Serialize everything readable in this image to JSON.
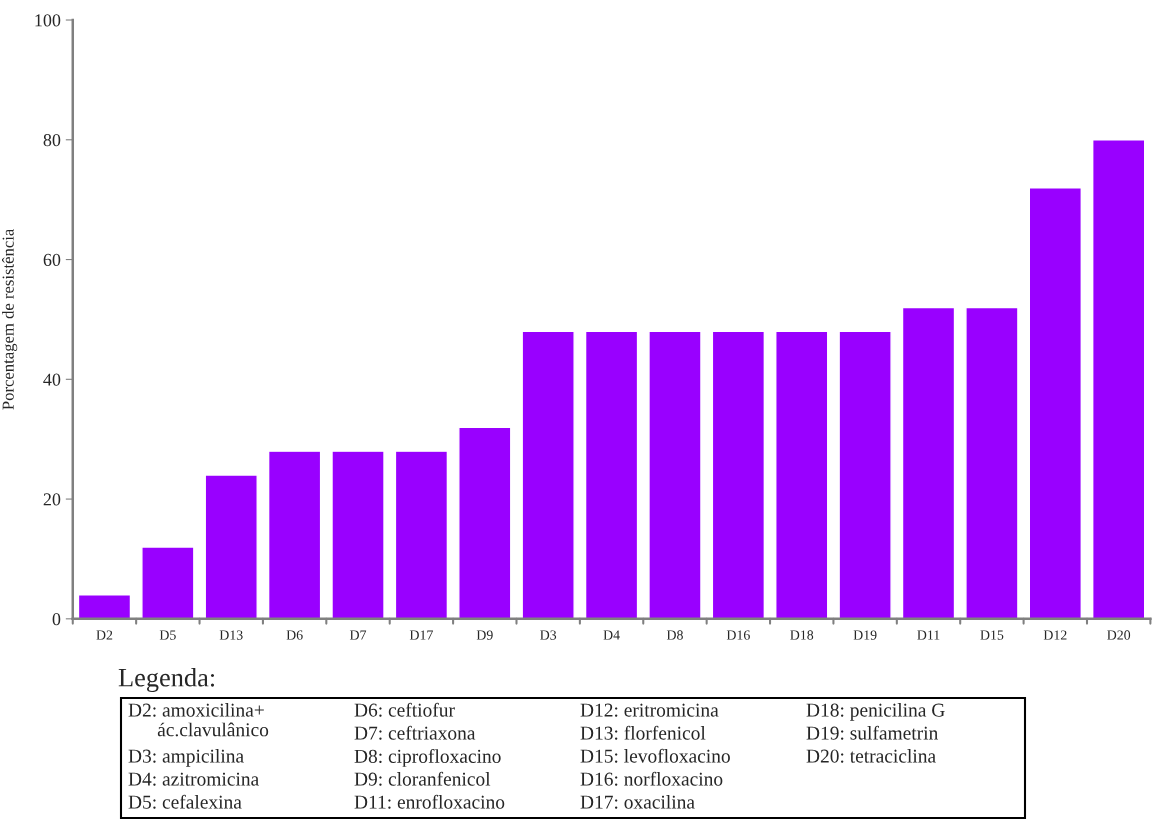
{
  "chart_data": {
    "type": "bar",
    "ylabel": "Porcentagem de resistência",
    "categories": [
      "D2",
      "D5",
      "D13",
      "D6",
      "D7",
      "D17",
      "D9",
      "D3",
      "D4",
      "D8",
      "D16",
      "D18",
      "D19",
      "D11",
      "D15",
      "D12",
      "D20"
    ],
    "values": [
      4,
      12,
      24,
      28,
      28,
      28,
      32,
      48,
      48,
      48,
      48,
      48,
      48,
      52,
      52,
      72,
      80
    ],
    "color": "#9900ff",
    "ylim": [
      0,
      100
    ],
    "yticks": [
      0,
      20,
      40,
      60,
      80,
      100
    ],
    "grid": false,
    "legend": false,
    "annotations": [
      "Legenda:",
      "D2: amoxicilina+\n      ác.clavulânico",
      "D3: ampicilina",
      "D4: azitromicina",
      "D5: cefalexina",
      "D6: ceftiofur",
      "D7: ceftriaxona",
      "D8: ciprofloxacino",
      "D9: cloranfenicol",
      "D11: enrofloxacino",
      "D12: eritromicina",
      "D13: florfenicol",
      "D15: levofloxacino",
      "D16: norfloxacino",
      "D17: oxacilina",
      "D18: penicilina G",
      "D19: sulfametrin",
      "D20: tetraciclina"
    ]
  }
}
